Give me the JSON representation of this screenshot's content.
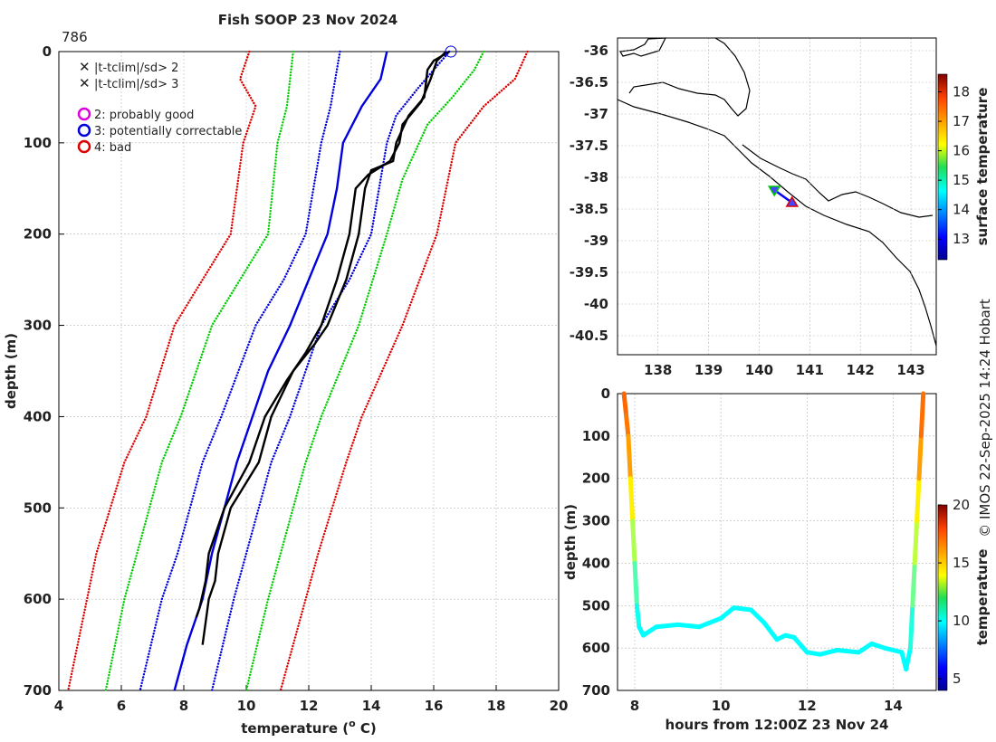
{
  "title": "Fish SOOP 23 Nov 2024",
  "station_id": "786",
  "credit": "© IMOS 22-Sep-2025 14:24 Hobart",
  "chart_data": [
    {
      "type": "line",
      "name": "profile",
      "xlabel": "temperature (",
      "xlabel_sup": "o",
      "xlabel_end": " C)",
      "ylabel": "depth (m)",
      "xlim": [
        4,
        20
      ],
      "ylim": [
        0,
        700
      ],
      "xticks": [
        "4",
        "6",
        "8",
        "10",
        "12",
        "14",
        "16",
        "18",
        "20"
      ],
      "yticks": [
        "0",
        "100",
        "200",
        "300",
        "400",
        "500",
        "600",
        "700"
      ],
      "legend": [
        {
          "label": "|t-tclim|/sd> 2",
          "symbol": "x",
          "color": "#00cc00"
        },
        {
          "label": "|t-tclim|/sd> 3",
          "symbol": "x",
          "color": "#dd0000"
        },
        {
          "label": "2: probably good",
          "symbol": "o",
          "color": "#dd00dd"
        },
        {
          "label": "3: potentially correctable",
          "symbol": "o",
          "color": "#0000dd"
        },
        {
          "label": "4: bad",
          "symbol": "o",
          "color": "#dd0000"
        }
      ],
      "series": [
        {
          "name": "clim -3sd",
          "color": "#dd0000",
          "style": "dotted",
          "points": [
            [
              10.1,
              0
            ],
            [
              9.8,
              30
            ],
            [
              10.3,
              60
            ],
            [
              9.9,
              100
            ],
            [
              9.5,
              200
            ],
            [
              8.6,
              250
            ],
            [
              7.7,
              300
            ],
            [
              6.8,
              400
            ],
            [
              6.1,
              450
            ],
            [
              5.2,
              550
            ],
            [
              4.9,
              600
            ],
            [
              4.3,
              700
            ]
          ]
        },
        {
          "name": "clim -2sd",
          "color": "#00cc00",
          "style": "dotted",
          "points": [
            [
              11.5,
              0
            ],
            [
              11.3,
              60
            ],
            [
              11.0,
              100
            ],
            [
              10.7,
              200
            ],
            [
              9.8,
              250
            ],
            [
              8.9,
              300
            ],
            [
              7.9,
              400
            ],
            [
              7.3,
              450
            ],
            [
              6.5,
              550
            ],
            [
              6.1,
              600
            ],
            [
              5.5,
              700
            ]
          ]
        },
        {
          "name": "clim -1sd",
          "color": "#0000dd",
          "style": "dotted",
          "points": [
            [
              13.0,
              0
            ],
            [
              12.7,
              60
            ],
            [
              12.4,
              100
            ],
            [
              11.9,
              200
            ],
            [
              11.2,
              250
            ],
            [
              10.3,
              300
            ],
            [
              9.2,
              400
            ],
            [
              8.6,
              450
            ],
            [
              7.8,
              550
            ],
            [
              7.3,
              600
            ],
            [
              6.6,
              700
            ]
          ]
        },
        {
          "name": "climatology mean",
          "color": "#0000dd",
          "style": "solid",
          "points": [
            [
              14.5,
              0
            ],
            [
              14.3,
              30
            ],
            [
              13.7,
              60
            ],
            [
              13.1,
              100
            ],
            [
              12.9,
              150
            ],
            [
              12.6,
              200
            ],
            [
              12.0,
              250
            ],
            [
              11.4,
              300
            ],
            [
              10.7,
              350
            ],
            [
              10.2,
              400
            ],
            [
              9.7,
              450
            ],
            [
              9.3,
              500
            ],
            [
              8.9,
              550
            ],
            [
              8.6,
              600
            ],
            [
              8.1,
              650
            ],
            [
              7.7,
              700
            ]
          ]
        },
        {
          "name": "clim +1sd",
          "color": "#0000dd",
          "style": "dotted",
          "points": [
            [
              16.5,
              0
            ],
            [
              15.5,
              40
            ],
            [
              14.8,
              70
            ],
            [
              14.5,
              100
            ],
            [
              14.0,
              200
            ],
            [
              13.3,
              250
            ],
            [
              12.4,
              300
            ],
            [
              11.4,
              400
            ],
            [
              10.8,
              450
            ],
            [
              10.0,
              550
            ],
            [
              9.6,
              600
            ],
            [
              8.9,
              700
            ]
          ]
        },
        {
          "name": "clim +2sd",
          "color": "#00cc00",
          "style": "dotted",
          "points": [
            [
              17.6,
              0
            ],
            [
              17.3,
              20
            ],
            [
              16.6,
              50
            ],
            [
              15.8,
              80
            ],
            [
              15.0,
              140
            ],
            [
              14.5,
              200
            ],
            [
              13.6,
              300
            ],
            [
              12.4,
              400
            ],
            [
              11.9,
              450
            ],
            [
              11.1,
              550
            ],
            [
              10.7,
              600
            ],
            [
              10.0,
              700
            ]
          ]
        },
        {
          "name": "clim +3sd",
          "color": "#dd0000",
          "style": "dotted",
          "points": [
            [
              19.0,
              0
            ],
            [
              18.6,
              30
            ],
            [
              17.6,
              60
            ],
            [
              16.7,
              100
            ],
            [
              16.1,
              200
            ],
            [
              15.0,
              300
            ],
            [
              13.7,
              400
            ],
            [
              13.2,
              450
            ],
            [
              12.3,
              550
            ],
            [
              11.9,
              600
            ],
            [
              11.1,
              700
            ]
          ]
        },
        {
          "name": "observed profile A",
          "color": "#000000",
          "style": "solid",
          "points": [
            [
              16.5,
              0
            ],
            [
              16.0,
              10
            ],
            [
              15.8,
              20
            ],
            [
              15.7,
              50
            ],
            [
              15.2,
              70
            ],
            [
              14.8,
              100
            ],
            [
              14.7,
              120
            ],
            [
              14.0,
              130
            ],
            [
              13.8,
              150
            ],
            [
              13.6,
              200
            ],
            [
              13.2,
              250
            ],
            [
              12.6,
              300
            ],
            [
              12.2,
              320
            ],
            [
              11.5,
              350
            ],
            [
              10.8,
              400
            ],
            [
              10.4,
              450
            ],
            [
              9.5,
              500
            ],
            [
              9.1,
              550
            ],
            [
              9.0,
              580
            ],
            [
              8.8,
              600
            ],
            [
              8.6,
              650
            ]
          ]
        },
        {
          "name": "observed profile B",
          "color": "#000000",
          "style": "solid",
          "points": [
            [
              16.4,
              0
            ],
            [
              16.1,
              10
            ],
            [
              15.9,
              30
            ],
            [
              15.6,
              55
            ],
            [
              15.0,
              80
            ],
            [
              14.9,
              100
            ],
            [
              14.6,
              120
            ],
            [
              13.9,
              135
            ],
            [
              13.5,
              150
            ],
            [
              13.3,
              200
            ],
            [
              12.9,
              250
            ],
            [
              12.4,
              300
            ],
            [
              11.9,
              330
            ],
            [
              11.3,
              360
            ],
            [
              10.6,
              400
            ],
            [
              10.1,
              450
            ],
            [
              9.3,
              500
            ],
            [
              8.8,
              550
            ],
            [
              8.7,
              580
            ],
            [
              8.5,
              610
            ],
            [
              8.4,
              620
            ]
          ]
        }
      ],
      "markers": [
        {
          "x": 16.55,
          "y": 0,
          "symbol": "o",
          "color": "#0000dd"
        }
      ]
    },
    {
      "type": "scatter",
      "name": "map",
      "xticks": [
        "138",
        "139",
        "140",
        "141",
        "142",
        "143"
      ],
      "yticks": [
        "-36",
        "-36.5",
        "-37",
        "-37.5",
        "-38",
        "-38.5",
        "-39",
        "-39.5",
        "-40",
        "-40.5"
      ],
      "xlim": [
        137.2,
        143.5
      ],
      "ylim": [
        -40.8,
        -35.8
      ],
      "start": {
        "lon": 140.65,
        "lat": -38.4,
        "color": "#dd0000",
        "symbol": "triangle-up"
      },
      "end": {
        "lon": 140.3,
        "lat": -38.2,
        "color": "#00cc00",
        "symbol": "triangle-down"
      },
      "colorbar": {
        "label": "surface temperature",
        "ticks": [
          "13",
          "14",
          "15",
          "16",
          "17",
          "18"
        ],
        "range": [
          12.3,
          18.6
        ]
      }
    },
    {
      "type": "line",
      "name": "depth-time",
      "xlabel": "hours from 12:00Z 23 Nov 24",
      "ylabel": "depth (m)",
      "xlim": [
        7.6,
        15.0
      ],
      "ylim": [
        0,
        700
      ],
      "xticks": [
        "8",
        "10",
        "12",
        "14"
      ],
      "yticks": [
        "0",
        "100",
        "200",
        "300",
        "400",
        "500",
        "600",
        "700"
      ],
      "colorbar": {
        "label": "temperature",
        "ticks": [
          "5",
          "10",
          "15",
          "20"
        ],
        "range": [
          4,
          20
        ]
      },
      "points": [
        [
          7.75,
          0,
          16.5
        ],
        [
          7.8,
          50,
          16.3
        ],
        [
          7.85,
          100,
          16
        ],
        [
          7.9,
          200,
          15
        ],
        [
          7.95,
          300,
          13.5
        ],
        [
          8.0,
          400,
          12
        ],
        [
          8.05,
          500,
          10.5
        ],
        [
          8.1,
          550,
          10
        ],
        [
          8.2,
          570,
          10
        ],
        [
          8.5,
          550,
          10
        ],
        [
          9.0,
          545,
          10
        ],
        [
          9.5,
          550,
          10
        ],
        [
          10.0,
          530,
          10
        ],
        [
          10.3,
          505,
          10
        ],
        [
          10.7,
          510,
          10
        ],
        [
          11.0,
          540,
          10
        ],
        [
          11.3,
          580,
          10
        ],
        [
          11.5,
          570,
          10
        ],
        [
          11.7,
          575,
          10
        ],
        [
          12.0,
          610,
          10
        ],
        [
          12.3,
          615,
          10
        ],
        [
          12.7,
          605,
          10
        ],
        [
          13.2,
          610,
          10
        ],
        [
          13.5,
          590,
          10
        ],
        [
          13.8,
          600,
          10
        ],
        [
          14.2,
          610,
          10
        ],
        [
          14.3,
          650,
          10
        ],
        [
          14.4,
          600,
          10
        ],
        [
          14.45,
          500,
          11
        ],
        [
          14.5,
          400,
          12.5
        ],
        [
          14.55,
          300,
          13.5
        ],
        [
          14.6,
          200,
          15
        ],
        [
          14.65,
          100,
          16
        ],
        [
          14.7,
          0,
          16.5
        ]
      ]
    }
  ]
}
